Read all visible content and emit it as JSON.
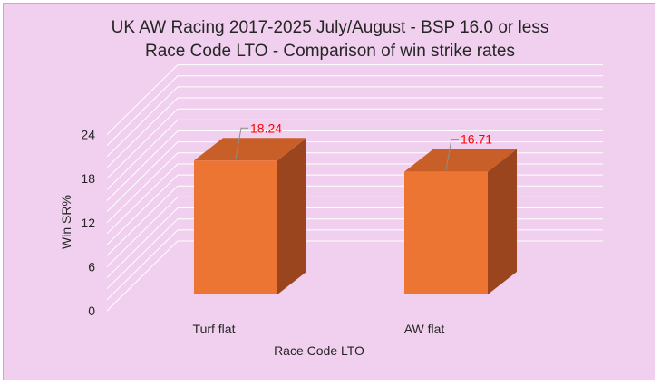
{
  "chart_data": {
    "type": "bar",
    "title_line1": "UK AW Racing 2017-2025 July/August - BSP 16.0 or less",
    "title_line2": "Race Code LTO - Comparison of win strike rates",
    "xlabel": "Race Code LTO",
    "ylabel": "Win SR%",
    "categories": [
      "Turf flat",
      "AW flat"
    ],
    "values": [
      18.24,
      16.71
    ],
    "data_labels": [
      "18.24",
      "16.71"
    ],
    "yticks": [
      "0",
      "6",
      "12",
      "18",
      "24"
    ],
    "ylim": [
      0,
      24
    ],
    "grid": true,
    "legend": "none"
  },
  "colors": {
    "background": "#f0d0ee",
    "bar_front": "#ed7533",
    "bar_side": "#9a451d",
    "bar_top": "#c95f28",
    "data_label": "#ff0000",
    "gridline": "#ffffff",
    "text": "#262626"
  }
}
